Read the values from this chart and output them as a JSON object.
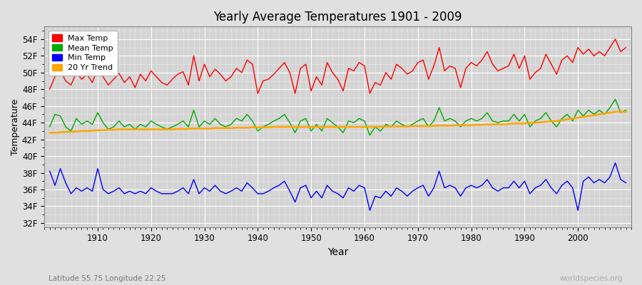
{
  "title": "Yearly Average Temperatures 1901 - 2009",
  "xlabel": "Year",
  "ylabel": "Temperature",
  "subtitle_lat": "Latitude 55.75 Longitude 22.25",
  "watermark": "worldspecies.org",
  "years": [
    1901,
    1902,
    1903,
    1904,
    1905,
    1906,
    1907,
    1908,
    1909,
    1910,
    1911,
    1912,
    1913,
    1914,
    1915,
    1916,
    1917,
    1918,
    1919,
    1920,
    1921,
    1922,
    1923,
    1924,
    1925,
    1926,
    1927,
    1928,
    1929,
    1930,
    1931,
    1932,
    1933,
    1934,
    1935,
    1936,
    1937,
    1938,
    1939,
    1940,
    1941,
    1942,
    1943,
    1944,
    1945,
    1946,
    1947,
    1948,
    1949,
    1950,
    1951,
    1952,
    1953,
    1954,
    1955,
    1956,
    1957,
    1958,
    1959,
    1960,
    1961,
    1962,
    1963,
    1964,
    1965,
    1966,
    1967,
    1968,
    1969,
    1970,
    1971,
    1972,
    1973,
    1974,
    1975,
    1976,
    1977,
    1978,
    1979,
    1980,
    1981,
    1982,
    1983,
    1984,
    1985,
    1986,
    1987,
    1988,
    1989,
    1990,
    1991,
    1992,
    1993,
    1994,
    1995,
    1996,
    1997,
    1998,
    1999,
    2000,
    2001,
    2002,
    2003,
    2004,
    2005,
    2006,
    2007,
    2008,
    2009
  ],
  "max_temp_F": [
    48.0,
    49.5,
    50.2,
    49.0,
    48.5,
    50.0,
    49.2,
    49.8,
    48.8,
    50.5,
    49.5,
    48.5,
    49.2,
    49.9,
    48.8,
    49.5,
    48.2,
    49.8,
    49.0,
    50.2,
    49.5,
    48.8,
    48.5,
    49.2,
    49.8,
    50.1,
    48.5,
    52.0,
    49.0,
    51.0,
    49.5,
    50.4,
    49.8,
    49.0,
    49.5,
    50.5,
    50.0,
    51.5,
    51.0,
    47.5,
    49.0,
    49.2,
    49.8,
    50.5,
    51.2,
    50.0,
    47.5,
    50.5,
    51.0,
    47.8,
    49.5,
    48.5,
    51.2,
    50.0,
    49.2,
    47.8,
    50.5,
    50.2,
    51.2,
    50.8,
    47.5,
    48.8,
    48.5,
    50.0,
    49.2,
    51.0,
    50.5,
    49.8,
    50.2,
    51.2,
    51.5,
    49.2,
    50.8,
    53.0,
    50.2,
    50.8,
    50.5,
    48.2,
    50.5,
    51.2,
    50.8,
    51.5,
    52.5,
    51.0,
    50.2,
    50.5,
    50.8,
    52.2,
    50.5,
    52.0,
    49.2,
    50.0,
    50.5,
    52.2,
    51.0,
    49.8,
    51.5,
    52.0,
    51.2,
    53.0,
    52.2,
    52.8,
    52.0,
    52.5,
    52.0,
    53.0,
    54.0,
    52.5,
    53.0
  ],
  "mean_temp_F": [
    43.5,
    45.0,
    44.8,
    43.5,
    43.0,
    44.5,
    43.8,
    44.2,
    43.8,
    45.2,
    44.0,
    43.2,
    43.5,
    44.2,
    43.5,
    43.8,
    43.2,
    43.8,
    43.5,
    44.2,
    43.8,
    43.5,
    43.2,
    43.5,
    43.8,
    44.2,
    43.5,
    45.5,
    43.5,
    44.2,
    43.8,
    44.5,
    43.8,
    43.5,
    43.8,
    44.5,
    44.2,
    45.0,
    44.2,
    43.0,
    43.5,
    43.8,
    44.2,
    44.5,
    45.0,
    44.0,
    42.8,
    44.2,
    44.5,
    43.0,
    43.8,
    43.0,
    44.5,
    44.0,
    43.5,
    42.8,
    44.2,
    44.0,
    44.5,
    44.2,
    42.5,
    43.5,
    43.0,
    43.8,
    43.5,
    44.2,
    43.8,
    43.5,
    43.8,
    44.2,
    44.5,
    43.5,
    44.2,
    45.8,
    44.2,
    44.5,
    44.2,
    43.5,
    44.2,
    44.5,
    44.2,
    44.5,
    45.2,
    44.2,
    44.0,
    44.2,
    44.2,
    45.0,
    44.2,
    45.0,
    43.5,
    44.2,
    44.5,
    45.2,
    44.2,
    43.5,
    44.5,
    45.0,
    44.2,
    45.5,
    44.8,
    45.5,
    45.0,
    45.5,
    45.0,
    45.8,
    46.8,
    45.2,
    45.5
  ],
  "min_temp_F": [
    38.2,
    36.5,
    38.5,
    36.8,
    35.5,
    36.2,
    35.8,
    36.2,
    35.8,
    38.5,
    36.0,
    35.5,
    35.8,
    36.2,
    35.5,
    35.8,
    35.5,
    35.8,
    35.5,
    36.2,
    35.8,
    35.5,
    35.5,
    35.5,
    35.8,
    36.2,
    35.5,
    37.2,
    35.5,
    36.2,
    35.8,
    36.5,
    35.8,
    35.5,
    35.8,
    36.2,
    35.8,
    36.8,
    36.2,
    35.5,
    35.5,
    35.8,
    36.2,
    36.5,
    37.0,
    35.8,
    34.5,
    36.2,
    36.5,
    35.0,
    35.8,
    35.0,
    36.5,
    35.8,
    35.5,
    35.0,
    36.2,
    35.8,
    36.5,
    36.2,
    33.5,
    35.2,
    35.0,
    35.8,
    35.2,
    36.2,
    35.8,
    35.2,
    35.8,
    36.2,
    36.5,
    35.2,
    36.2,
    38.2,
    36.2,
    36.5,
    36.2,
    35.2,
    36.2,
    36.5,
    36.2,
    36.5,
    37.2,
    36.2,
    35.8,
    36.2,
    36.2,
    37.0,
    36.2,
    37.0,
    35.5,
    36.2,
    36.5,
    37.2,
    36.2,
    35.5,
    36.5,
    37.0,
    36.2,
    33.5,
    37.0,
    37.5,
    36.8,
    37.2,
    36.8,
    37.5,
    39.2,
    37.2,
    36.8
  ],
  "trend_temp_F": [
    42.8,
    42.8,
    42.85,
    42.9,
    42.9,
    42.95,
    43.0,
    43.0,
    43.05,
    43.1,
    43.1,
    43.15,
    43.15,
    43.2,
    43.2,
    43.2,
    43.2,
    43.2,
    43.2,
    43.2,
    43.2,
    43.2,
    43.2,
    43.2,
    43.25,
    43.25,
    43.25,
    43.3,
    43.3,
    43.3,
    43.3,
    43.35,
    43.35,
    43.35,
    43.35,
    43.4,
    43.4,
    43.4,
    43.45,
    43.45,
    43.45,
    43.45,
    43.5,
    43.5,
    43.5,
    43.5,
    43.5,
    43.5,
    43.5,
    43.5,
    43.5,
    43.5,
    43.5,
    43.5,
    43.5,
    43.5,
    43.5,
    43.5,
    43.5,
    43.5,
    43.5,
    43.52,
    43.52,
    43.55,
    43.55,
    43.55,
    43.55,
    43.55,
    43.6,
    43.6,
    43.6,
    43.6,
    43.62,
    43.65,
    43.65,
    43.65,
    43.68,
    43.7,
    43.7,
    43.7,
    43.75,
    43.75,
    43.8,
    43.8,
    43.8,
    43.8,
    43.85,
    43.9,
    43.9,
    43.9,
    44.0,
    44.0,
    44.05,
    44.1,
    44.15,
    44.2,
    44.3,
    44.4,
    44.5,
    44.6,
    44.7,
    44.8,
    44.9,
    45.0,
    45.1,
    45.2,
    45.3,
    45.3,
    45.3
  ],
  "max_color": "#ff0000",
  "mean_color": "#00aa00",
  "min_color": "#0000ff",
  "trend_color": "#ffa500",
  "bg_color": "#e0e0e0",
  "plot_bg_color": "#d4d4d4",
  "grid_major_color": "#ffffff",
  "grid_minor_color": "#e8e8e8",
  "yticks_F": [
    32,
    34,
    36,
    38,
    40,
    42,
    44,
    46,
    48,
    50,
    52,
    54
  ],
  "ytick_labels": [
    "32F",
    "34F",
    "36F",
    "38F",
    "40F",
    "42F",
    "44F",
    "46F",
    "48F",
    "50F",
    "52F",
    "54F"
  ],
  "ylim": [
    31.5,
    55.5
  ],
  "xlim": [
    1900,
    2010
  ],
  "xticks": [
    1910,
    1920,
    1930,
    1940,
    1950,
    1960,
    1970,
    1980,
    1990,
    2000
  ]
}
